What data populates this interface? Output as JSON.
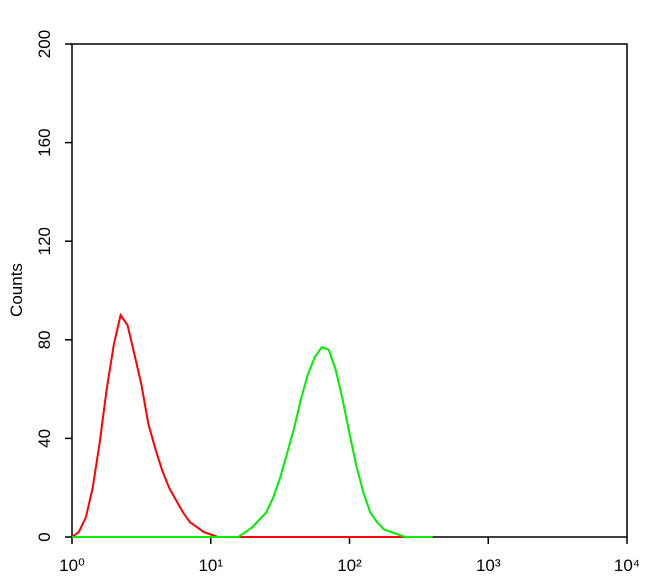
{
  "chart_data": {
    "type": "line",
    "y_label": "Counts",
    "log_x": true,
    "x": [
      1,
      1.12,
      1.26,
      1.41,
      1.58,
      1.78,
      2,
      2.24,
      2.51,
      2.82,
      3.16,
      3.55,
      3.98,
      4.47,
      5.01,
      5.62,
      6.31,
      7.08,
      7.94,
      8.91,
      10,
      11.2,
      12.6,
      14.1,
      15.8,
      17.8,
      20,
      22.4,
      25.1,
      28.2,
      31.6,
      35.5,
      39.8,
      44.7,
      50.1,
      56.2,
      63.1,
      70.8,
      79.4,
      89.1,
      100,
      112,
      126,
      141,
      158,
      178,
      200,
      224,
      251,
      282,
      316,
      355,
      398
    ],
    "series": [
      {
        "color": "#ff0000",
        "values": [
          0,
          2,
          8,
          20,
          38,
          60,
          78,
          90,
          86,
          74,
          62,
          46,
          36,
          27,
          20,
          15,
          10,
          6,
          4,
          2,
          1,
          0,
          0,
          0,
          0,
          0,
          0,
          0,
          0,
          0,
          0,
          0,
          0,
          0,
          0,
          0,
          0,
          0,
          0,
          0,
          0,
          0,
          0,
          0,
          0,
          0,
          0,
          0,
          0,
          0,
          0,
          0,
          0
        ]
      },
      {
        "color": "#00ee00",
        "values": [
          0,
          0,
          0,
          0,
          0,
          0,
          0,
          0,
          0,
          0,
          0,
          0,
          0,
          0,
          0,
          0,
          0,
          0,
          0,
          0,
          0,
          0,
          0,
          0,
          0,
          2,
          4,
          7,
          10,
          16,
          24,
          34,
          44,
          56,
          66,
          73,
          77,
          76,
          68,
          56,
          42,
          29,
          18,
          10,
          6,
          3,
          2,
          1,
          0,
          0,
          0,
          0,
          0
        ]
      }
    ],
    "xlim": [
      1,
      10000
    ],
    "xticks": [
      {
        "value": 1,
        "label": "10⁰"
      },
      {
        "value": 10,
        "label": "10¹"
      },
      {
        "value": 100,
        "label": "10²"
      },
      {
        "value": 1000,
        "label": "10³"
      },
      {
        "value": 10000,
        "label": "10⁴"
      }
    ],
    "ylim": [
      0,
      200
    ],
    "yticks": [
      0,
      40,
      80,
      120,
      160,
      200
    ]
  }
}
